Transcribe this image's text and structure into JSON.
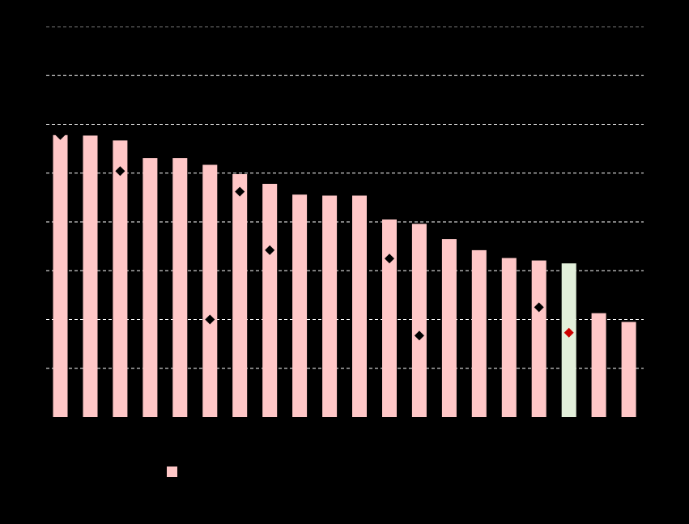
{
  "chart_data": {
    "type": "bar",
    "title": "",
    "xlabel": "",
    "ylabel": "",
    "categories": [
      "",
      "",
      "",
      "",
      "",
      "",
      "",
      "",
      "",
      "",
      "",
      "",
      "",
      "",
      "",
      "",
      "",
      "",
      "",
      ""
    ],
    "ylim": [
      0,
      8
    ],
    "grid": true,
    "series": [
      {
        "kind": "bar",
        "values": [
          5.78,
          5.77,
          5.67,
          5.31,
          5.31,
          5.17,
          4.98,
          4.78,
          4.56,
          4.54,
          4.54,
          4.05,
          3.96,
          3.65,
          3.42,
          3.26,
          3.21,
          3.15,
          2.13,
          1.95
        ],
        "color": "#ffc7c7",
        "highlight_index": 17,
        "highlight_color": "#e2efda"
      },
      {
        "kind": "marker",
        "marker": "diamond",
        "values": [
          5.78,
          null,
          5.04,
          null,
          null,
          2.0,
          4.62,
          3.42,
          null,
          null,
          null,
          3.25,
          1.67,
          null,
          null,
          null,
          2.25,
          1.73,
          null,
          null
        ],
        "color": "#000000",
        "highlight_index": 17,
        "highlight_color": "#cc0000"
      }
    ],
    "legend": {
      "position": "bottom-left",
      "entries": [
        {
          "label": "",
          "color": "#ffc7c7"
        }
      ]
    }
  }
}
